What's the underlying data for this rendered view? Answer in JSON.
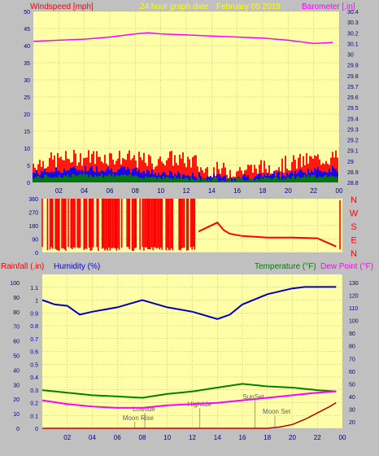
{
  "header": {
    "wind_title": "Windspeed [mph]",
    "center_title": "24 hour graph date",
    "date": "February 05 2019",
    "baro_title": "Barometer [.in]"
  },
  "panel_labels": {
    "rain": "Rainfall (.in)",
    "humidity": "Humidity (%)",
    "temperature": "Temperature (°F)",
    "dewpoint": "Dew Point (°F)"
  },
  "colors": {
    "background": "#c0c0c0",
    "plot": "#ffffa8",
    "wind": "#ff0000",
    "gust": "#0000ff",
    "avg": "#008000",
    "baro": "#ff00ff",
    "humidity": "#0000c0",
    "temperature": "#008000",
    "dewpoint": "#ff00ff",
    "rain": "#c00000"
  },
  "chart_data": [
    {
      "id": "wind-baro",
      "type": "line",
      "title": "Windspeed [mph]",
      "x_ticks": [
        "02",
        "04",
        "06",
        "08",
        "10",
        "12",
        "14",
        "16",
        "18",
        "20",
        "22",
        "00"
      ],
      "ylim": [
        0,
        50
      ],
      "y_ticks": [
        "0",
        "5",
        "10",
        "15",
        "20",
        "25",
        "30",
        "35",
        "40",
        "45",
        "50"
      ],
      "y2lim": [
        28.8,
        30.4
      ],
      "y2_ticks": [
        "28.8",
        "28.9",
        "29",
        "29.1",
        "29.2",
        "29.3",
        "29.4",
        "29.5",
        "29.6",
        "29.7",
        "29.8",
        "29.9",
        "30",
        "30.1",
        "30.2",
        "30.3",
        "30.4"
      ],
      "y2label": "Barometer [.in]",
      "series": [
        {
          "axis": "y2",
          "color": "#ff00ff",
          "x": [
            0,
            2,
            4,
            6,
            8,
            9,
            10,
            12,
            14,
            16,
            18,
            20,
            22,
            23.5
          ],
          "y": [
            30.12,
            30.13,
            30.14,
            30.16,
            30.19,
            30.2,
            30.19,
            30.18,
            30.17,
            30.16,
            30.15,
            30.13,
            30.1,
            30.11
          ]
        }
      ]
    },
    {
      "id": "wind-direction",
      "type": "line",
      "y_ticks": [
        "0",
        "90",
        "180",
        "270",
        "360"
      ],
      "ylim": [
        0,
        360
      ],
      "y2_ticks": [
        "N",
        "W",
        "S",
        "E",
        "N"
      ],
      "series": [
        {
          "color": "#ff0000",
          "x": [
            12.5,
            14,
            14.5,
            15,
            16,
            18,
            20,
            22,
            23.5
          ],
          "y": [
            140,
            200,
            150,
            125,
            110,
            100,
            100,
            95,
            40
          ]
        }
      ]
    },
    {
      "id": "rain-hum-temp",
      "type": "line",
      "x_ticks": [
        "02",
        "04",
        "06",
        "08",
        "10",
        "12",
        "14",
        "16",
        "18",
        "20",
        "22",
        "00"
      ],
      "ylim": [
        0,
        1.2
      ],
      "y_ticks": [
        "0",
        "0.1",
        "0.2",
        "0.3",
        "0.4",
        "0.5",
        "0.6",
        "0.7",
        "0.8",
        "0.9",
        "1",
        "1.1"
      ],
      "humidity_ticks": [
        "0",
        "10",
        "20",
        "30",
        "40",
        "50",
        "60",
        "70",
        "80",
        "90",
        "100"
      ],
      "temp_ticks": [
        "20",
        "30",
        "40",
        "50",
        "60",
        "70",
        "80",
        "90",
        "100",
        "110",
        "120",
        "130"
      ],
      "annotations": [
        "Lowtide",
        "Moon Rise",
        "Hightide",
        "SunSet",
        "Moon Set"
      ],
      "series": [
        {
          "name": "Humidity",
          "color": "#0000c0",
          "x": [
            0,
            1,
            2,
            3,
            4,
            6,
            8,
            10,
            12,
            14,
            15,
            16,
            18,
            20,
            21,
            22,
            23.5
          ],
          "y": [
            88,
            85,
            84,
            78,
            80,
            83,
            88,
            83,
            80,
            75,
            78,
            85,
            92,
            96,
            97,
            97,
            97
          ]
        },
        {
          "name": "Temperature",
          "color": "#008000",
          "x": [
            0,
            2,
            4,
            6,
            8,
            10,
            12,
            14,
            16,
            18,
            20,
            22,
            23.5
          ],
          "y": [
            45,
            43,
            41,
            40,
            39,
            42,
            44,
            47,
            50,
            48,
            47,
            45,
            44
          ]
        },
        {
          "name": "Dew Point",
          "color": "#ff00ff",
          "x": [
            0,
            2,
            4,
            6,
            8,
            10,
            12,
            14,
            16,
            18,
            20,
            22,
            23.5
          ],
          "y": [
            37,
            34,
            32,
            31,
            31,
            33,
            34,
            35,
            37,
            39,
            41,
            43,
            44
          ]
        },
        {
          "name": "Rainfall",
          "color": "#c00000",
          "x": [
            0,
            18,
            19,
            20,
            21,
            22,
            23,
            23.5
          ],
          "y": [
            0,
            0,
            0.01,
            0.03,
            0.07,
            0.12,
            0.17,
            0.2
          ]
        }
      ]
    }
  ]
}
